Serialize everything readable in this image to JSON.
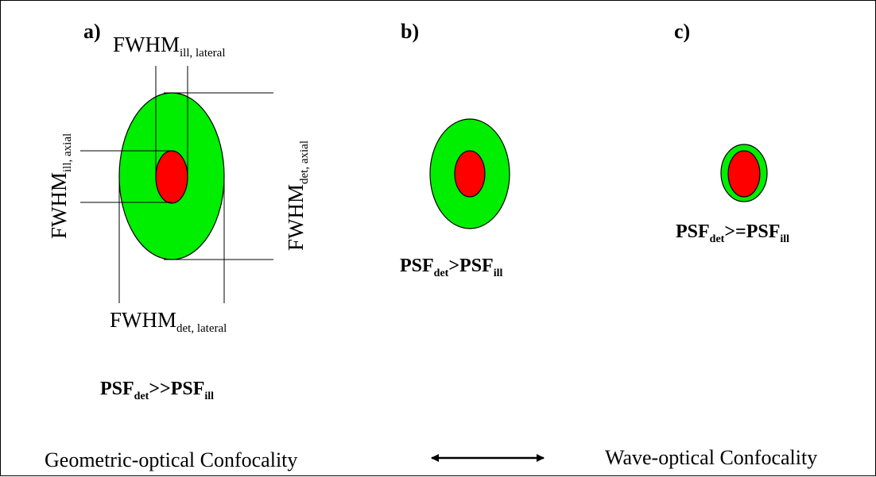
{
  "panels": {
    "a": "a)",
    "b": "b)",
    "c": "c)"
  },
  "fwhm": {
    "base": "FWHM",
    "ill_lateral": "ill, lateral",
    "ill_axial": "ill, axial",
    "det_axial": "det, axial",
    "det_lateral": "det, lateral"
  },
  "psf": {
    "base": "PSF",
    "det": "det",
    "ill": "ill",
    "rel_a": ">>",
    "rel_b": ">",
    "rel_c": ">="
  },
  "footer": {
    "left": "Geometric-optical Confocality",
    "right": "Wave-optical Confocality"
  },
  "colors": {
    "outer_psf": "#00ee00",
    "inner_psf": "#ff0000",
    "stroke": "#000000"
  }
}
